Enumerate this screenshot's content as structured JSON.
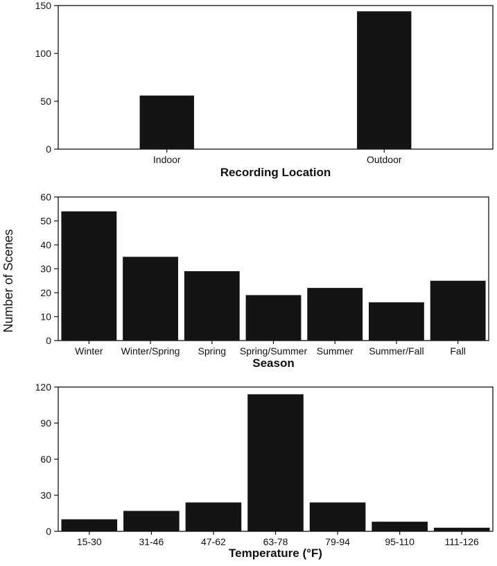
{
  "shared_ylabel": "Number of Scenes",
  "chart_data": [
    {
      "type": "bar",
      "categories": [
        "Indoor",
        "Outdoor"
      ],
      "values": [
        56,
        144
      ],
      "title": "",
      "xlabel": "Recording Location",
      "ylabel": "Number of Scenes",
      "ylim": [
        0,
        150
      ],
      "yticks": [
        0,
        50,
        100,
        150
      ],
      "bar_color": "#141414"
    },
    {
      "type": "bar",
      "categories": [
        "Winter",
        "Winter/Spring",
        "Spring",
        "Spring/Summer",
        "Summer",
        "Summer/Fall",
        "Fall"
      ],
      "values": [
        54,
        35,
        29,
        19,
        22,
        16,
        25
      ],
      "title": "",
      "xlabel": "Season",
      "ylabel": "Number of Scenes",
      "ylim": [
        0,
        60
      ],
      "yticks": [
        0,
        10,
        20,
        30,
        40,
        50,
        60
      ],
      "bar_color": "#141414"
    },
    {
      "type": "bar",
      "categories": [
        "15-30",
        "31-46",
        "47-62",
        "63-78",
        "79-94",
        "95-110",
        "111-126"
      ],
      "values": [
        10,
        17,
        24,
        114,
        24,
        8,
        3
      ],
      "title": "",
      "xlabel": "Temperature (°F)",
      "ylabel": "Number of Scenes",
      "ylim": [
        0,
        120
      ],
      "yticks": [
        0,
        30,
        60,
        90,
        120
      ],
      "bar_color": "#141414"
    }
  ]
}
